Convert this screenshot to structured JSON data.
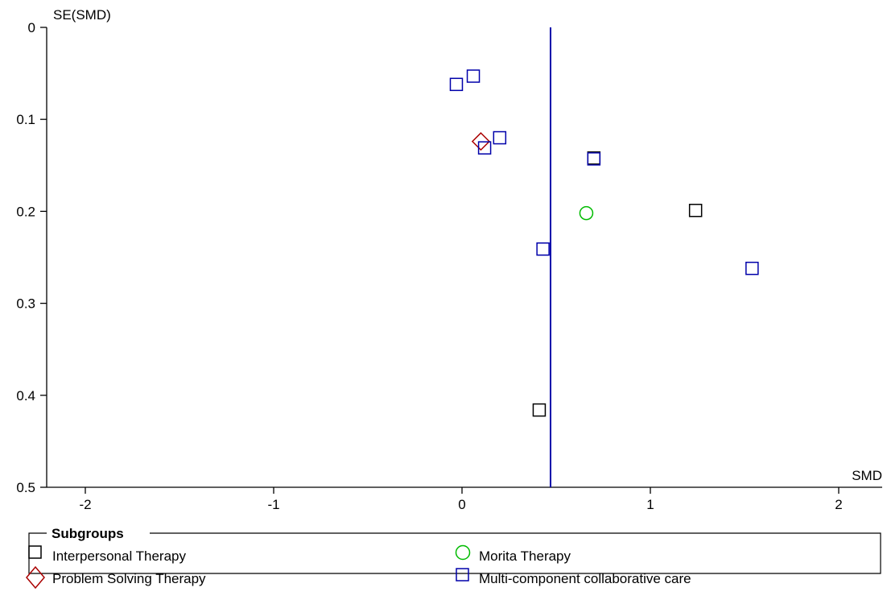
{
  "chart_data": {
    "type": "scatter",
    "subtype": "funnel plot",
    "xlabel": "SMD",
    "ylabel": "SE(SMD)",
    "xlim": [
      -2.2,
      2.2
    ],
    "ylim": [
      0,
      0.5
    ],
    "y_inverted": true,
    "xticks": [
      "-2",
      "-1",
      "0",
      "1",
      "2"
    ],
    "yticks": [
      "0",
      "0.1",
      "0.2",
      "0.3",
      "0.4",
      "0.5"
    ],
    "pooled_estimate": 0.47,
    "pooled_line_color": "#0000aa",
    "legend": {
      "title": "Subgroups",
      "placement": "bottom"
    },
    "series": [
      {
        "name": "Interpersonal Therapy",
        "marker": "square",
        "color": "#000000",
        "points": [
          [
            0.7,
            0.142
          ],
          [
            1.24,
            0.199
          ],
          [
            0.41,
            0.416
          ]
        ]
      },
      {
        "name": "Morita Therapy",
        "marker": "circle",
        "color": "#00bb00",
        "points": [
          [
            0.66,
            0.202
          ]
        ]
      },
      {
        "name": "Problem Solving Therapy",
        "marker": "diamond",
        "color": "#aa0000",
        "points": [
          [
            0.1,
            0.124
          ]
        ]
      },
      {
        "name": "Multi-component collaborative care",
        "marker": "square",
        "color": "#0000aa",
        "points": [
          [
            -0.03,
            0.062
          ],
          [
            0.06,
            0.053
          ],
          [
            0.2,
            0.12
          ],
          [
            0.12,
            0.131
          ],
          [
            0.7,
            0.143
          ],
          [
            0.43,
            0.241
          ],
          [
            1.54,
            0.262
          ]
        ]
      }
    ]
  }
}
